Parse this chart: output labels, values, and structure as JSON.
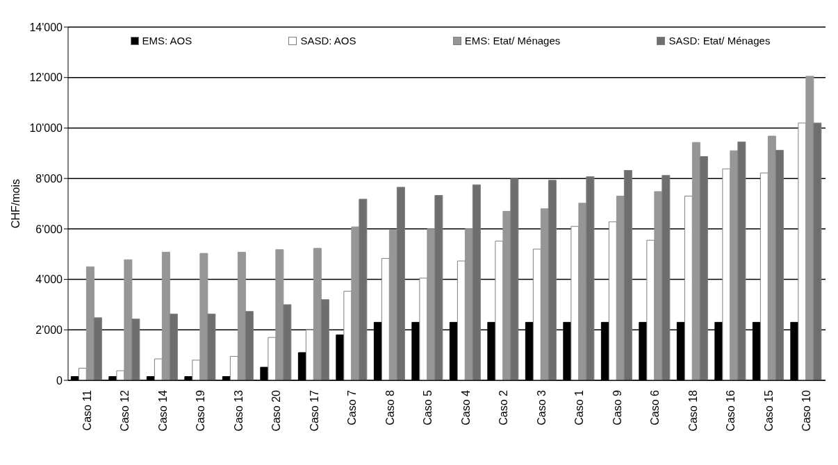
{
  "chart_data": {
    "type": "bar",
    "ylabel": "CHF/mois",
    "categories": [
      "Caso 11",
      "Caso 12",
      "Caso 14",
      "Caso 19",
      "Caso 13",
      "Caso 20",
      "Caso 17",
      "Caso 7",
      "Caso 8",
      "Caso 5",
      "Caso 4",
      "Caso 2",
      "Caso 3",
      "Caso 1",
      "Caso 9",
      "Caso 6",
      "Caso 18",
      "Caso 16",
      "Caso 15",
      "Caso 10"
    ],
    "series": [
      {
        "name": "EMS: AOS",
        "color": "#000000",
        "values": [
          150,
          150,
          150,
          150,
          150,
          520,
          1100,
          1800,
          2300,
          2300,
          2300,
          2300,
          2300,
          2300,
          2300,
          2300,
          2300,
          2300,
          2300,
          2300
        ]
      },
      {
        "name": "SASD: AOS",
        "color": "#ffffff",
        "values": [
          480,
          380,
          850,
          800,
          950,
          1700,
          2000,
          3530,
          4830,
          4050,
          4730,
          5520,
          5200,
          6100,
          6280,
          5550,
          7300,
          8380,
          8220,
          10200
        ]
      },
      {
        "name": "EMS: Etat/ Ménages",
        "color": "#969696",
        "values": [
          4500,
          4780,
          5080,
          5030,
          5080,
          5180,
          5230,
          6080,
          5950,
          6000,
          6000,
          6700,
          6800,
          7020,
          7300,
          7480,
          9430,
          9100,
          9680,
          12050
        ]
      },
      {
        "name": "SASD: Etat/ Ménages",
        "color": "#6e6e6e",
        "values": [
          2480,
          2430,
          2630,
          2630,
          2730,
          3000,
          3200,
          7180,
          7650,
          7330,
          7750,
          7980,
          7930,
          8070,
          8320,
          8120,
          8870,
          9450,
          9120,
          10200
        ]
      }
    ],
    "ylim": [
      0,
      14000
    ],
    "yticks": [
      0,
      {
        "value": 2000,
        "label": "2'000"
      },
      {
        "value": 4000,
        "label": "4'000"
      },
      {
        "value": 6000,
        "label": "6'000"
      },
      {
        "value": 8000,
        "label": "8'000"
      },
      {
        "value": 10000,
        "label": "10'000"
      },
      {
        "value": 12000,
        "label": "12'000"
      },
      {
        "value": 14000,
        "label": "14'000"
      }
    ],
    "grid": "y",
    "legend": "top"
  }
}
